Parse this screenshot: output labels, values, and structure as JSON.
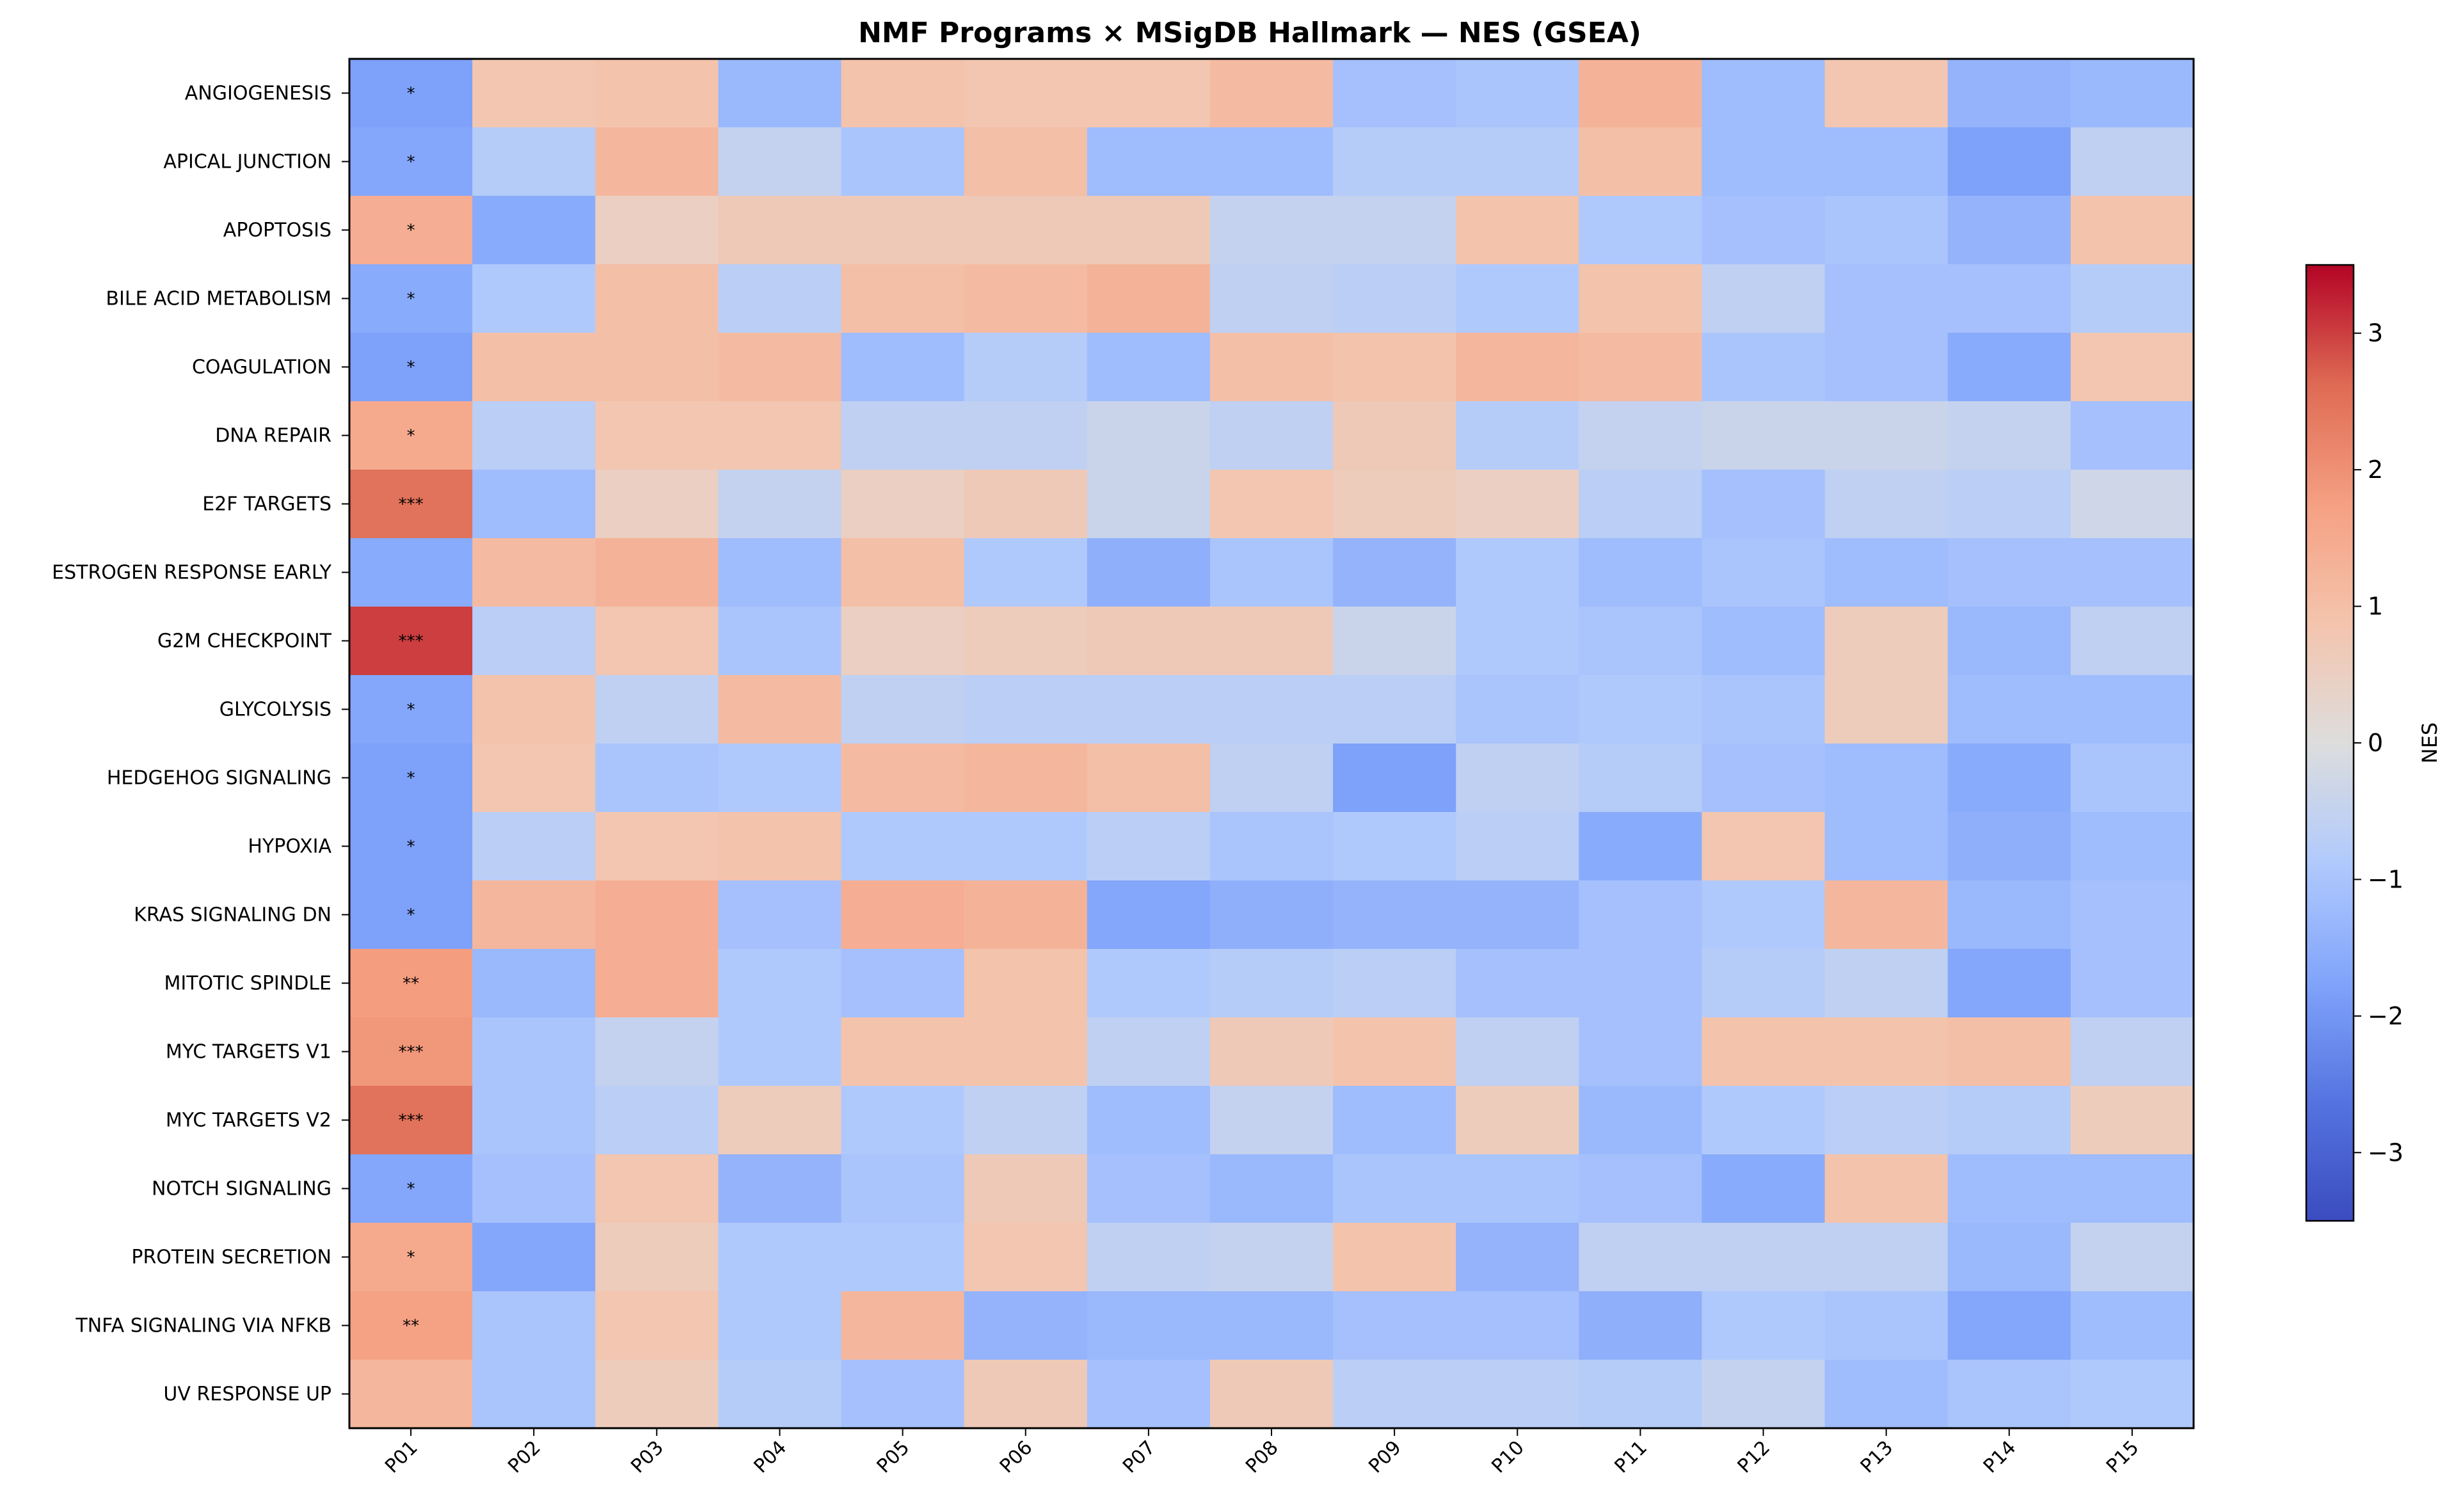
{
  "chart_data": {
    "type": "heatmap",
    "title": "NMF Programs × MSigDB Hallmark — NES (GSEA)",
    "xlabel": "",
    "ylabel": "",
    "colorbar_label": "NES",
    "colormap": "coolwarm",
    "vmin": -3.5,
    "vmax": 3.5,
    "colorbar_ticks": [
      -3,
      -2,
      -1,
      0,
      1,
      2,
      3
    ],
    "colorbar_tick_labels": [
      "−3",
      "−2",
      "−1",
      "0",
      "1",
      "2",
      "3"
    ],
    "columns": [
      "P01",
      "P02",
      "P03",
      "P04",
      "P05",
      "P06",
      "P07",
      "P08",
      "P09",
      "P10",
      "P11",
      "P12",
      "P13",
      "P14",
      "P15"
    ],
    "rows": [
      "ANGIOGENESIS",
      "APICAL JUNCTION",
      "APOPTOSIS",
      "BILE ACID METABOLISM",
      "COAGULATION",
      "DNA REPAIR",
      "E2F TARGETS",
      "ESTROGEN RESPONSE EARLY",
      "G2M CHECKPOINT",
      "GLYCOLYSIS",
      "HEDGEHOG SIGNALING",
      "HYPOXIA",
      "KRAS SIGNALING DN",
      "MITOTIC SPINDLE",
      "MYC TARGETS V1",
      "MYC TARGETS V2",
      "NOTCH SIGNALING",
      "PROTEIN SECRETION",
      "TNFA SIGNALING VIA NFKB",
      "UV RESPONSE UP"
    ],
    "values": [
      [
        -1.8,
        0.8,
        0.9,
        -1.3,
        0.9,
        0.8,
        0.8,
        1.1,
        -1.1,
        -1.0,
        1.3,
        -1.2,
        0.8,
        -1.4,
        -1.3
      ],
      [
        -1.7,
        -0.8,
        1.2,
        -0.5,
        -1.0,
        1.0,
        -1.2,
        -1.2,
        -0.8,
        -0.8,
        1.0,
        -1.2,
        -1.2,
        -1.8,
        -0.6
      ],
      [
        1.4,
        -1.6,
        0.5,
        0.7,
        0.7,
        0.7,
        0.7,
        -0.5,
        -0.5,
        0.9,
        -0.9,
        -1.1,
        -1.0,
        -1.4,
        0.9
      ],
      [
        -1.6,
        -0.9,
        1.0,
        -0.7,
        1.0,
        1.1,
        1.3,
        -0.6,
        -0.7,
        -0.9,
        0.9,
        -0.6,
        -1.1,
        -1.1,
        -0.8
      ],
      [
        -1.8,
        1.0,
        1.0,
        1.1,
        -1.2,
        -0.8,
        -1.2,
        1.0,
        0.9,
        1.2,
        1.1,
        -1.0,
        -1.1,
        -1.6,
        0.8
      ],
      [
        1.5,
        -0.7,
        0.8,
        0.8,
        -0.6,
        -0.6,
        -0.4,
        -0.6,
        0.7,
        -0.8,
        -0.5,
        -0.4,
        -0.4,
        -0.5,
        -1.1
      ],
      [
        2.5,
        -1.2,
        0.5,
        -0.5,
        0.5,
        0.7,
        -0.4,
        0.8,
        0.6,
        0.5,
        -0.7,
        -1.1,
        -0.6,
        -0.7,
        -0.3
      ],
      [
        -1.6,
        1.1,
        1.3,
        -1.2,
        1.0,
        -0.9,
        -1.5,
        -1.0,
        -1.4,
        -0.9,
        -1.2,
        -1.0,
        -1.2,
        -1.1,
        -1.1
      ],
      [
        3.0,
        -0.7,
        0.8,
        -1.0,
        0.5,
        0.6,
        0.7,
        0.7,
        -0.4,
        -0.9,
        -1.0,
        -1.2,
        0.6,
        -1.3,
        -0.6
      ],
      [
        -1.7,
        0.9,
        -0.6,
        1.1,
        -0.6,
        -0.7,
        -0.7,
        -0.7,
        -0.7,
        -1.0,
        -0.9,
        -1.0,
        0.6,
        -1.2,
        -1.2
      ],
      [
        -1.8,
        0.8,
        -1.0,
        -0.9,
        1.1,
        1.2,
        1.0,
        -0.6,
        -1.8,
        -0.6,
        -0.8,
        -1.1,
        -1.2,
        -1.6,
        -1.0
      ],
      [
        -1.8,
        -0.7,
        0.8,
        0.9,
        -0.9,
        -0.9,
        -0.7,
        -1.0,
        -0.9,
        -0.7,
        -1.6,
        0.8,
        -1.2,
        -1.5,
        -1.2
      ],
      [
        -1.8,
        1.2,
        1.4,
        -1.1,
        1.4,
        1.3,
        -1.7,
        -1.5,
        -1.4,
        -1.4,
        -1.1,
        -0.9,
        1.2,
        -1.3,
        -1.1
      ],
      [
        1.8,
        -1.3,
        1.4,
        -0.9,
        -1.1,
        0.9,
        -0.9,
        -0.8,
        -0.7,
        -1.1,
        -1.1,
        -0.8,
        -0.6,
        -1.7,
        -1.1
      ],
      [
        1.9,
        -1.0,
        -0.5,
        -0.9,
        0.9,
        0.9,
        -0.6,
        0.7,
        0.9,
        -0.6,
        -1.1,
        0.9,
        0.9,
        1.0,
        -0.6
      ],
      [
        2.5,
        -1.0,
        -0.7,
        0.6,
        -0.9,
        -0.6,
        -1.2,
        -0.5,
        -1.2,
        0.6,
        -1.3,
        -0.9,
        -0.7,
        -0.8,
        0.6
      ],
      [
        -1.7,
        -1.1,
        0.8,
        -1.4,
        -1.0,
        0.7,
        -1.1,
        -1.3,
        -1.0,
        -1.0,
        -1.1,
        -1.6,
        0.9,
        -1.2,
        -1.2
      ],
      [
        1.5,
        -1.7,
        0.6,
        -0.9,
        -0.9,
        0.8,
        -0.6,
        -0.5,
        0.9,
        -1.4,
        -0.6,
        -0.6,
        -0.6,
        -1.3,
        -0.5
      ],
      [
        1.7,
        -1.0,
        0.8,
        -0.9,
        1.2,
        -1.4,
        -1.3,
        -1.3,
        -1.1,
        -1.1,
        -1.5,
        -0.9,
        -1.0,
        -1.7,
        -1.2
      ],
      [
        1.2,
        -1.0,
        0.6,
        -0.8,
        -1.1,
        0.7,
        -1.1,
        0.7,
        -0.7,
        -0.7,
        -0.8,
        -0.5,
        -1.2,
        -1.0,
        -0.9
      ]
    ],
    "annotations": [
      {
        "row": 0,
        "col": 0,
        "text": "*"
      },
      {
        "row": 1,
        "col": 0,
        "text": "*"
      },
      {
        "row": 2,
        "col": 0,
        "text": "*"
      },
      {
        "row": 3,
        "col": 0,
        "text": "*"
      },
      {
        "row": 4,
        "col": 0,
        "text": "*"
      },
      {
        "row": 5,
        "col": 0,
        "text": "*"
      },
      {
        "row": 6,
        "col": 0,
        "text": "***"
      },
      {
        "row": 8,
        "col": 0,
        "text": "***"
      },
      {
        "row": 9,
        "col": 0,
        "text": "*"
      },
      {
        "row": 10,
        "col": 0,
        "text": "*"
      },
      {
        "row": 11,
        "col": 0,
        "text": "*"
      },
      {
        "row": 12,
        "col": 0,
        "text": "*"
      },
      {
        "row": 13,
        "col": 0,
        "text": "**"
      },
      {
        "row": 14,
        "col": 0,
        "text": "***"
      },
      {
        "row": 15,
        "col": 0,
        "text": "***"
      },
      {
        "row": 16,
        "col": 0,
        "text": "*"
      },
      {
        "row": 17,
        "col": 0,
        "text": "*"
      },
      {
        "row": 18,
        "col": 0,
        "text": "**"
      }
    ],
    "grid": false,
    "legend": "colorbar-right"
  }
}
